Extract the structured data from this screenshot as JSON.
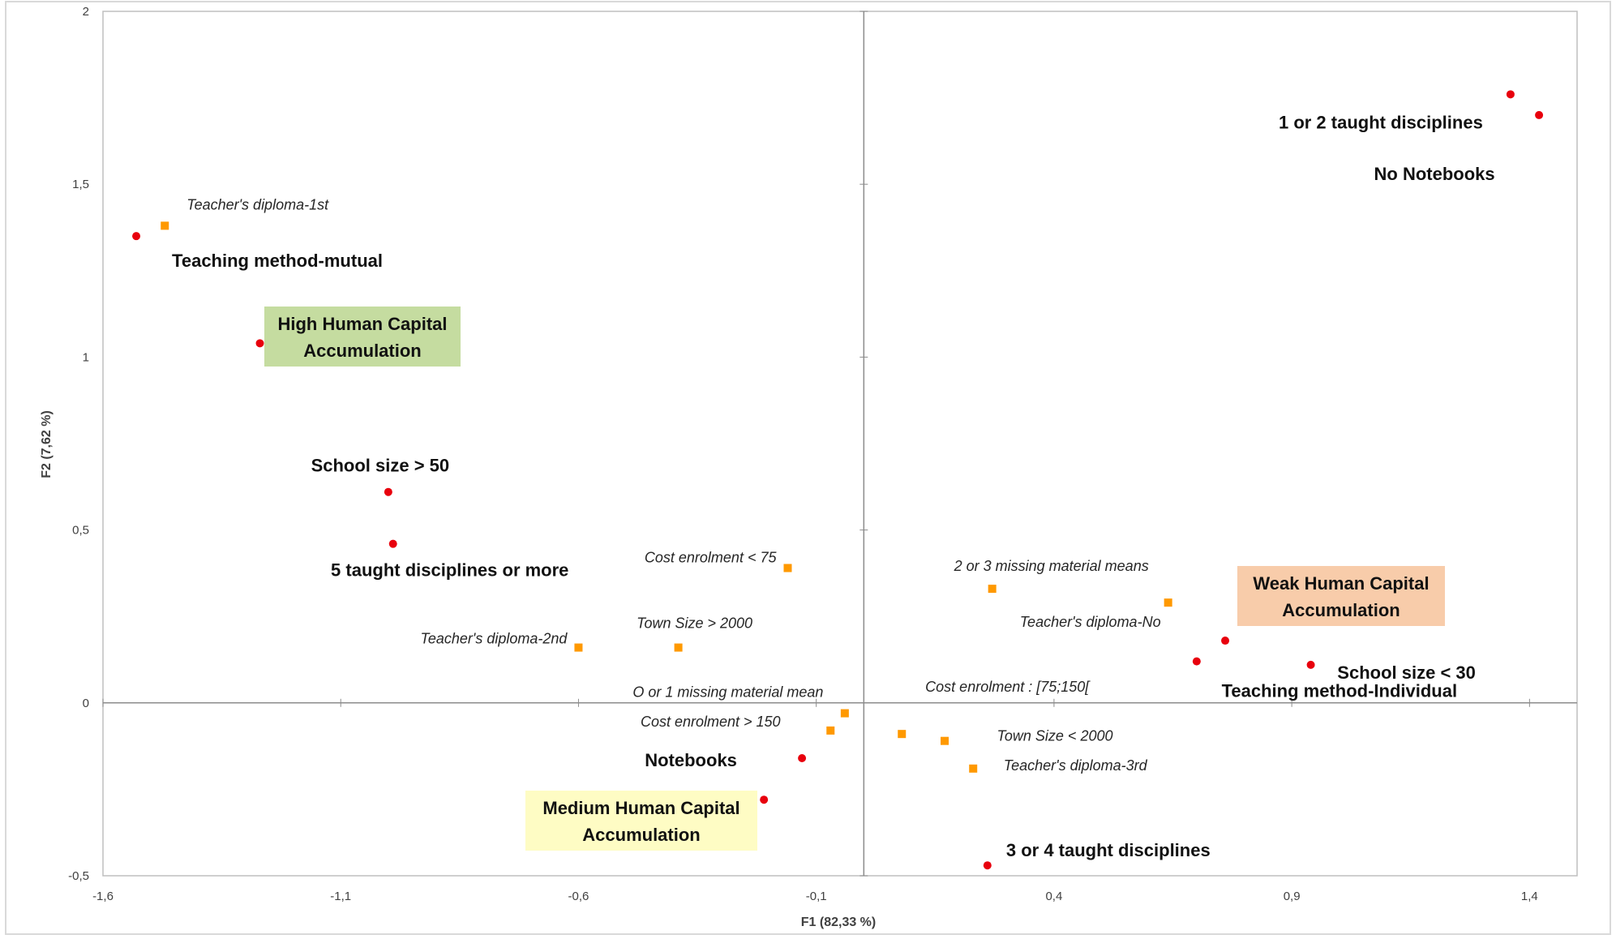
{
  "chart_data": {
    "type": "scatter",
    "title": "",
    "xlabel": "F1 (82,33 %)",
    "ylabel": "F2 (7,62 %)",
    "xlim": [
      -1.6,
      1.5
    ],
    "ylim": [
      -0.5,
      2
    ],
    "x_ticks": [
      "-1,6",
      "-1,1",
      "-0,6",
      "-0,1",
      "0,4",
      "0,9",
      "1,4"
    ],
    "y_ticks": [
      "-0,5",
      "0",
      "0,5",
      "1",
      "1,5",
      "2"
    ],
    "grid": false,
    "legend": "none",
    "colors": {
      "active": "#e8000d",
      "supplementary": "#ff9900",
      "box_high": "#c5dca0",
      "box_medium": "#fefcc4",
      "box_weak": "#f8ccaa"
    },
    "series": [
      {
        "marker": "circle",
        "points": [
          {
            "x": -1.53,
            "y": 1.35,
            "label": "Teaching method-mutual"
          },
          {
            "x": -1.27,
            "y": 1.04,
            "label": ""
          },
          {
            "x": -1.0,
            "y": 0.61,
            "label": "School size > 50"
          },
          {
            "x": -0.99,
            "y": 0.46,
            "label": "5 taught disciplines or more"
          },
          {
            "x": 1.36,
            "y": 1.76,
            "label": "1 or 2 taught disciplines"
          },
          {
            "x": 1.42,
            "y": 1.7,
            "label": "No Notebooks"
          },
          {
            "x": 0.76,
            "y": 0.18,
            "label": ""
          },
          {
            "x": 0.7,
            "y": 0.12,
            "label": "Teaching method-Individual"
          },
          {
            "x": 0.94,
            "y": 0.11,
            "label": "School size < 30"
          },
          {
            "x": -0.13,
            "y": -0.16,
            "label": "Notebooks"
          },
          {
            "x": -0.21,
            "y": -0.28,
            "label": ""
          },
          {
            "x": 0.26,
            "y": -0.47,
            "label": "3 or 4 taught disciplines"
          }
        ]
      },
      {
        "marker": "square",
        "points": [
          {
            "x": -1.47,
            "y": 1.38,
            "label": "Teacher's diploma-1st"
          },
          {
            "x": -0.16,
            "y": 0.39,
            "label": "Cost enrolment < 75"
          },
          {
            "x": -0.6,
            "y": 0.16,
            "label": "Teacher's diploma-2nd"
          },
          {
            "x": -0.39,
            "y": 0.16,
            "label": "Town Size > 2000"
          },
          {
            "x": 0.27,
            "y": 0.33,
            "label": "2 or 3 missing material means"
          },
          {
            "x": 0.64,
            "y": 0.29,
            "label": "Teacher's diploma-No"
          },
          {
            "x": -0.04,
            "y": -0.03,
            "label": "O or 1 missing material mean"
          },
          {
            "x": -0.07,
            "y": -0.08,
            "label": "Cost enrolment > 150"
          },
          {
            "x": 0.08,
            "y": -0.09,
            "label": "Cost enrolment : [75;150["
          },
          {
            "x": 0.17,
            "y": -0.11,
            "label": "Town Size < 2000"
          },
          {
            "x": 0.23,
            "y": -0.19,
            "label": "Teacher's diploma-3rd"
          }
        ]
      }
    ],
    "boxes": [
      {
        "lines": [
          "High Human Capital",
          "Accumulation"
        ]
      },
      {
        "lines": [
          "Medium Human Capital",
          "Accumulation"
        ]
      },
      {
        "lines": [
          "Weak Human Capital",
          "Accumulation"
        ]
      }
    ]
  }
}
